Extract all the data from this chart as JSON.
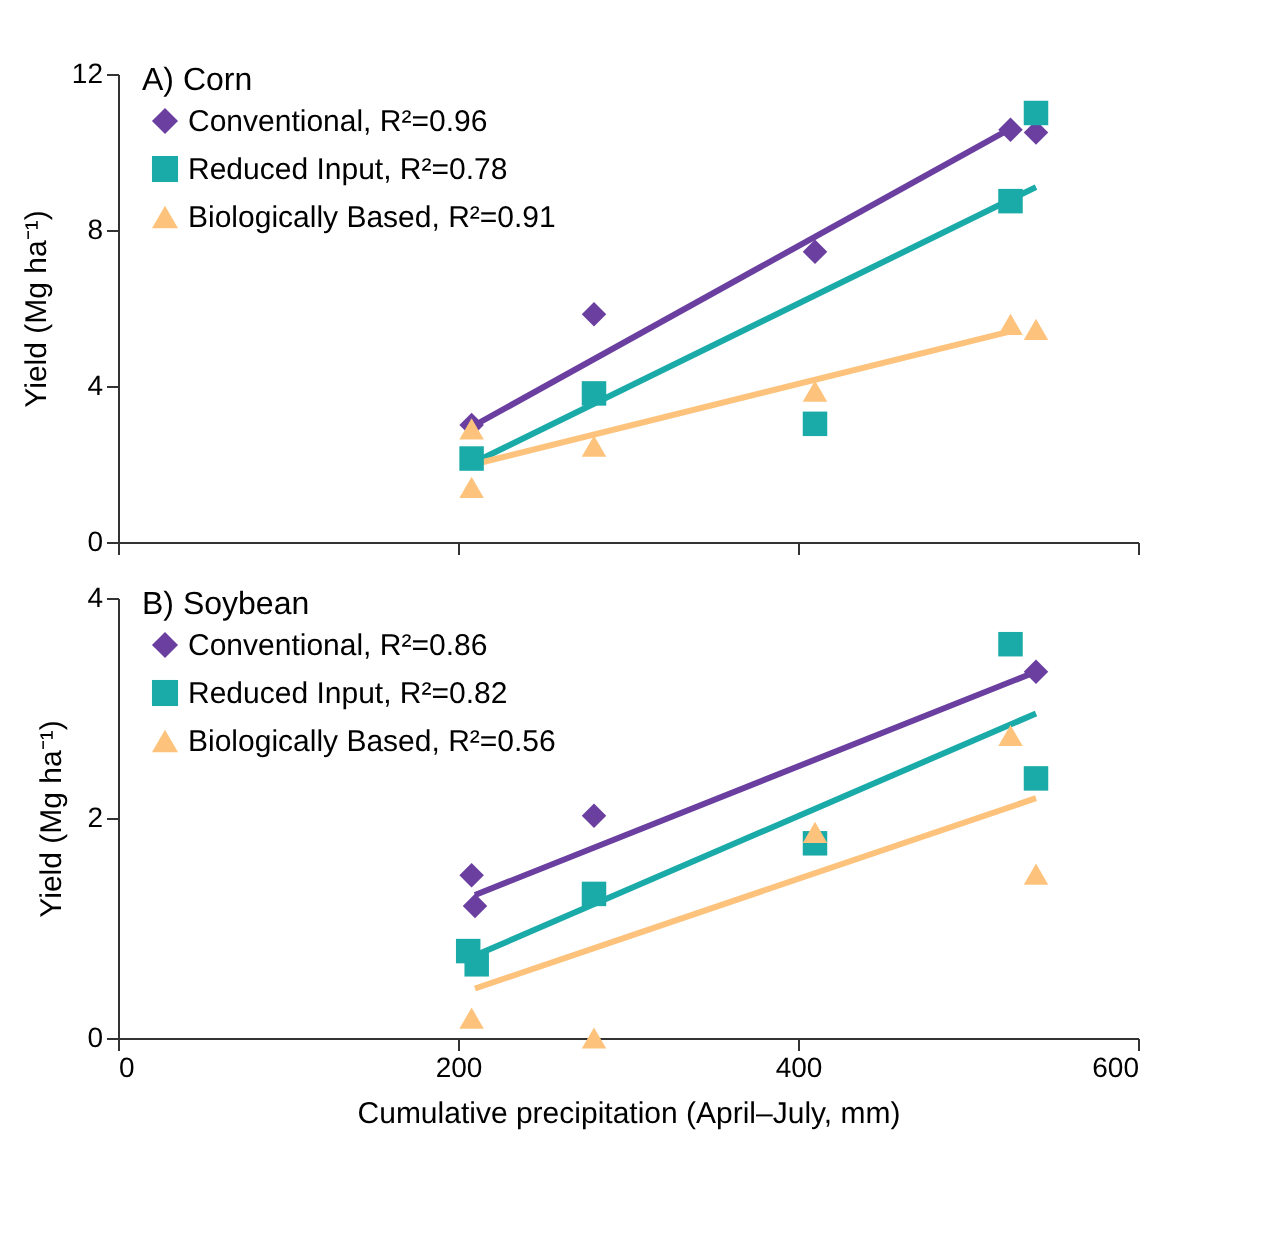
{
  "chart_data": [
    {
      "type": "scatter",
      "title": "A) Corn",
      "ylabel": "Yield  (Mg ha⁻¹)",
      "xlim": [
        0,
        600
      ],
      "xticks": [
        0,
        200,
        400,
        600
      ],
      "ylim": [
        0,
        12
      ],
      "yticks": [
        0,
        4,
        8,
        12
      ],
      "grid": false,
      "legend": "top left",
      "tick_labels": "y",
      "series": [
        {
          "name": "Conventional, R²=0.96",
          "color": "#6b3fa0",
          "marker": "diamond",
          "x": [
            208,
            280,
            410,
            525,
            540
          ],
          "values": [
            3.0,
            5.84,
            7.44,
            10.57,
            10.5
          ]
        },
        {
          "name": "Reduced Input, R²=0.78",
          "color": "#1aaba8",
          "marker": "square",
          "x": [
            208,
            280,
            410,
            525,
            540
          ],
          "values": [
            2.14,
            3.81,
            3.03,
            8.74,
            11.0
          ]
        },
        {
          "name": "Biologically Based, R²=0.91",
          "color": "#fdc37c",
          "marker": "triangle",
          "x": [
            208,
            208,
            280,
            410,
            525,
            540
          ],
          "values": [
            2.9,
            1.4,
            2.46,
            3.87,
            5.58,
            5.45
          ]
        },
        {
          "type": "line",
          "color": "#6b3fa0",
          "x": [
            210,
            525
          ],
          "values": [
            3.0,
            10.6
          ]
        },
        {
          "type": "line",
          "color": "#1aaba8",
          "x": [
            210,
            540
          ],
          "values": [
            2.05,
            9.1
          ]
        },
        {
          "type": "line",
          "color": "#fdc37c",
          "x": [
            210,
            525
          ],
          "values": [
            2.0,
            5.4
          ]
        }
      ]
    },
    {
      "type": "scatter",
      "title": "B) Soybean",
      "xlabel": "Cumulative precipitation (April–July, mm)",
      "ylabel": "Yield  (Mg ha⁻¹)",
      "xlim": [
        0,
        600
      ],
      "xticks": [
        0,
        200,
        400,
        600
      ],
      "ylim": [
        0,
        4
      ],
      "yticks": [
        0,
        2,
        4
      ],
      "grid": false,
      "legend": "top left",
      "series": [
        {
          "name": "Conventional, R²=0.86",
          "color": "#6b3fa0",
          "marker": "diamond",
          "x": [
            208,
            210,
            280,
            540
          ],
          "values": [
            1.48,
            1.2,
            2.02,
            3.33
          ]
        },
        {
          "name": "Reduced Input, R²=0.82",
          "color": "#1aaba8",
          "marker": "square",
          "x": [
            206,
            211,
            280,
            410,
            525,
            540
          ],
          "values": [
            0.79,
            0.67,
            1.31,
            1.77,
            3.58,
            2.36
          ]
        },
        {
          "name": "Biologically Based, R²=0.56",
          "color": "#fdc37c",
          "marker": "triangle",
          "x": [
            208,
            280,
            410,
            525,
            540
          ],
          "values": [
            0.18,
            0.0,
            1.87,
            2.75,
            1.49
          ]
        },
        {
          "type": "line",
          "color": "#6b3fa0",
          "x": [
            210,
            540
          ],
          "values": [
            1.3,
            3.33
          ]
        },
        {
          "type": "line",
          "color": "#1aaba8",
          "x": [
            210,
            540
          ],
          "values": [
            0.75,
            2.95
          ]
        },
        {
          "type": "line",
          "color": "#fdc37c",
          "x": [
            210,
            540
          ],
          "values": [
            0.45,
            2.18
          ]
        }
      ]
    }
  ]
}
